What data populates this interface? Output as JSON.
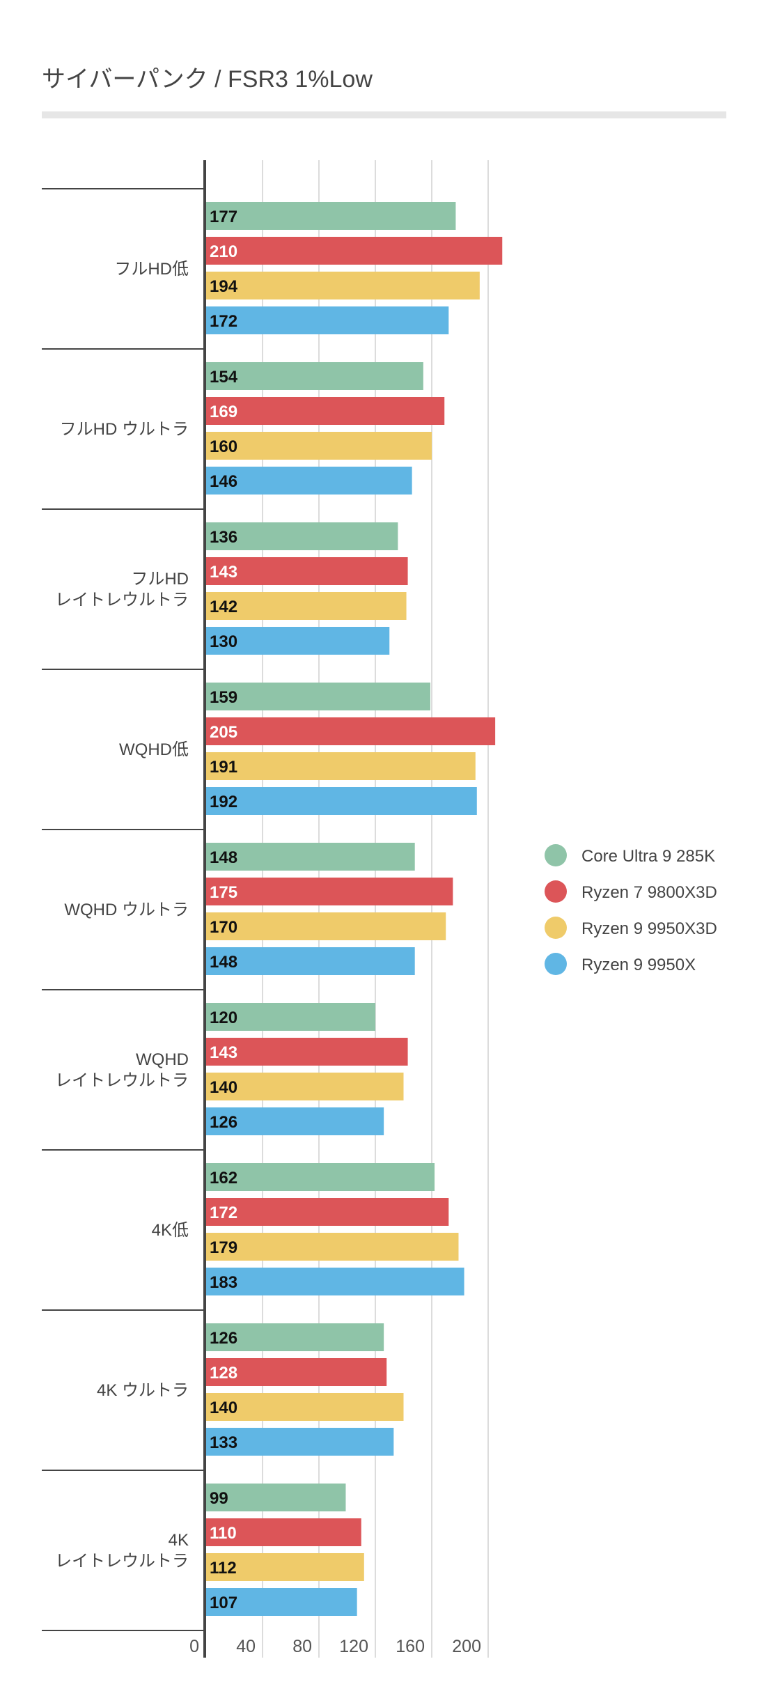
{
  "chart_data": {
    "type": "bar",
    "orientation": "horizontal",
    "title": "サイバーパンク / FSR3 1%Low",
    "xlabel": "",
    "ylabel": "",
    "xlim": [
      0,
      215
    ],
    "xticks": [
      0,
      40,
      80,
      120,
      160,
      200
    ],
    "grid": true,
    "legend_position": "right",
    "categories": [
      [
        "フルHD低"
      ],
      [
        "フルHD ウルトラ"
      ],
      [
        "フルHD",
        "レイトレウルトラ"
      ],
      [
        "WQHD低"
      ],
      [
        "WQHD ウルトラ"
      ],
      [
        "WQHD",
        "レイトレウルトラ"
      ],
      [
        "4K低"
      ],
      [
        "4K ウルトラ"
      ],
      [
        "4K",
        "レイトレウルトラ"
      ]
    ],
    "series": [
      {
        "name": "Core Ultra 9 285K",
        "color": "#8fc4a8",
        "label_color": "#111111",
        "values": [
          177,
          154,
          136,
          159,
          148,
          120,
          162,
          126,
          99
        ]
      },
      {
        "name": "Ryzen 7 9800X3D",
        "color": "#dc5558",
        "label_color": "#ffffff",
        "values": [
          210,
          169,
          143,
          205,
          175,
          143,
          172,
          128,
          110
        ]
      },
      {
        "name": "Ryzen 9 9950X3D",
        "color": "#efcb6a",
        "label_color": "#111111",
        "values": [
          194,
          160,
          142,
          191,
          170,
          140,
          179,
          140,
          112
        ]
      },
      {
        "name": "Ryzen 9 9950X",
        "color": "#60b6e4",
        "label_color": "#111111",
        "values": [
          172,
          146,
          130,
          192,
          148,
          126,
          183,
          133,
          107
        ]
      }
    ]
  }
}
